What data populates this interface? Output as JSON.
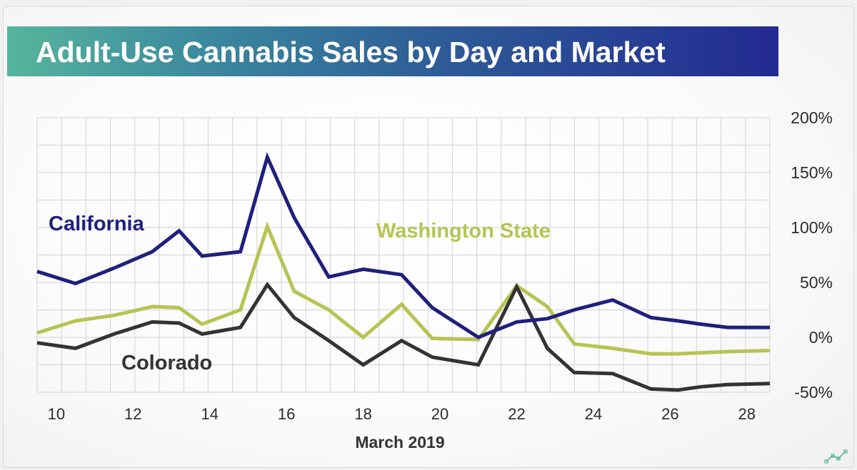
{
  "title": "Adult-Use Cannabis Sales by Day and Market",
  "colors": {
    "california": "#1f1f7d",
    "washington": "#b6c452",
    "colorado": "#333333",
    "title_gradient": [
      "#57b59c",
      "#232a92"
    ]
  },
  "logo_icon": "line-chart-logo-icon",
  "chart_data": {
    "type": "line",
    "title": "Adult-Use Cannabis Sales by Day and Market",
    "xlabel": "March 2019",
    "ylabel": "",
    "x": [
      10,
      11,
      12,
      13,
      14,
      15,
      16,
      17,
      18,
      19,
      20,
      21,
      22,
      23,
      24,
      25,
      26,
      27,
      28
    ],
    "xlim": [
      9.5,
      28.6
    ],
    "ylim": [
      -50,
      200
    ],
    "y_ticks": [
      200,
      150,
      100,
      50,
      0,
      -50
    ],
    "y_tick_labels": [
      "200%",
      "150%",
      "100%",
      "50%",
      "0%",
      "-50%"
    ],
    "x_ticks": [
      10,
      12,
      14,
      16,
      18,
      20,
      22,
      24,
      26,
      28
    ],
    "x_tick_labels": [
      "10",
      "12",
      "14",
      "16",
      "18",
      "20",
      "22",
      "24",
      "26",
      "28"
    ],
    "grid": true,
    "legend": "inline labels",
    "series": [
      {
        "name": "California",
        "x": [
          9.5,
          10.5,
          11.5,
          12.5,
          13.2,
          13.8,
          14.8,
          15.5,
          16.2,
          17.1,
          18.0,
          19.0,
          19.8,
          21.0,
          22.0,
          22.8,
          23.5,
          24.5,
          25.5,
          26.2,
          26.8,
          27.5,
          28.6
        ],
        "y": [
          60,
          49,
          63,
          78,
          97,
          74,
          78,
          164,
          109,
          55,
          62,
          57,
          27,
          0,
          14,
          17,
          25,
          34,
          18,
          15,
          12,
          9,
          9
        ]
      },
      {
        "name": "Washington State",
        "x": [
          9.5,
          10.5,
          11.5,
          12.5,
          13.2,
          13.8,
          14.8,
          15.5,
          16.2,
          17.1,
          18.0,
          19.0,
          19.8,
          21.0,
          22.0,
          22.8,
          23.5,
          24.5,
          25.5,
          26.2,
          26.8,
          27.5,
          28.6
        ],
        "y": [
          4,
          15,
          20,
          28,
          27,
          12,
          25,
          101,
          42,
          25,
          0,
          30,
          -1,
          -2,
          47,
          28,
          -6,
          -10,
          -15,
          -15,
          -14,
          -13,
          -12
        ],
        "label_color": "#b6c452"
      },
      {
        "name": "Colorado",
        "x": [
          9.5,
          10.5,
          11.5,
          12.5,
          13.2,
          13.8,
          14.8,
          15.5,
          16.2,
          17.1,
          18.0,
          19.0,
          19.8,
          21.0,
          22.0,
          22.8,
          23.5,
          24.5,
          25.5,
          26.2,
          26.8,
          27.5,
          28.6
        ],
        "y": [
          -5,
          -10,
          3,
          14,
          13,
          3,
          9,
          48,
          18,
          -3,
          -25,
          -3,
          -18,
          -25,
          46,
          -10,
          -32,
          -33,
          -47,
          -48,
          -45,
          -43,
          -42
        ]
      }
    ]
  }
}
